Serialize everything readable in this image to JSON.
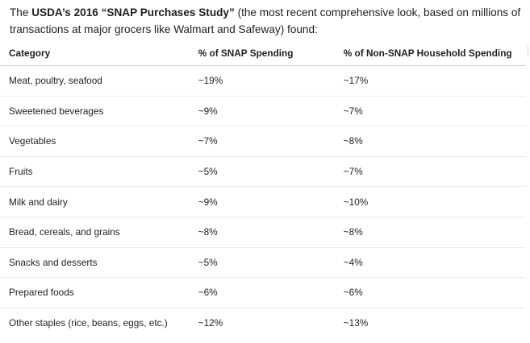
{
  "intro": {
    "prefix": "The ",
    "bold": "USDA’s 2016 “SNAP Purchases Study”",
    "suffix": " (the most recent comprehensive look, based on millions of transactions at major grocers like Walmart and Safeway) found:"
  },
  "table": {
    "headers": {
      "category": "Category",
      "snap": "% of SNAP Spending",
      "non_snap": "% of Non-SNAP Household Spending"
    },
    "rows": [
      {
        "category": "Meat, poultry, seafood",
        "snap": "~19%",
        "non_snap": "~17%"
      },
      {
        "category": "Sweetened beverages",
        "snap": "~9%",
        "non_snap": "~7%"
      },
      {
        "category": "Vegetables",
        "snap": "~7%",
        "non_snap": "~8%"
      },
      {
        "category": "Fruits",
        "snap": "~5%",
        "non_snap": "~7%"
      },
      {
        "category": "Milk and dairy",
        "snap": "~9%",
        "non_snap": "~10%"
      },
      {
        "category": "Bread, cereals, and grains",
        "snap": "~8%",
        "non_snap": "~8%"
      },
      {
        "category": "Snacks and desserts",
        "snap": "~5%",
        "non_snap": "~4%"
      },
      {
        "category": "Prepared foods",
        "snap": "~6%",
        "non_snap": "~6%"
      },
      {
        "category": "Other staples (rice, beans, eggs, etc.)",
        "snap": "~12%",
        "non_snap": "~13%"
      }
    ]
  }
}
